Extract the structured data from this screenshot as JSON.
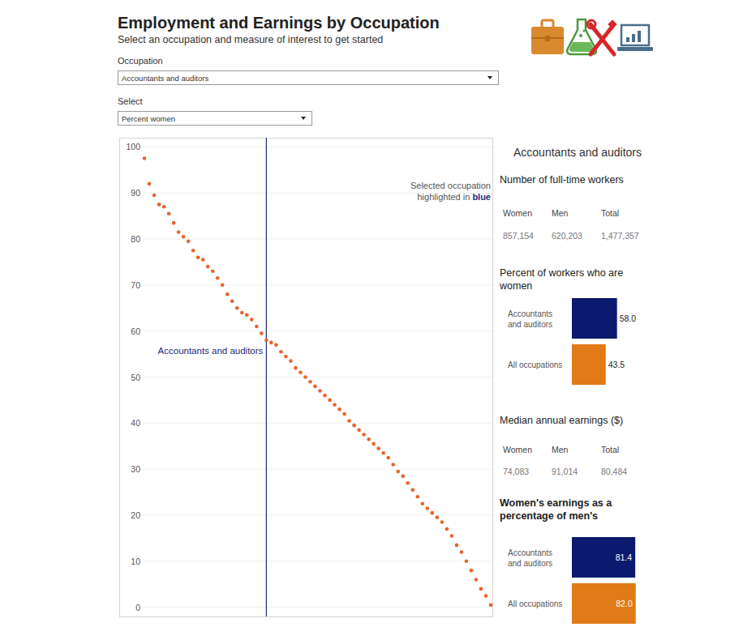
{
  "header": {
    "title": "Employment and Earnings by Occupation",
    "subtitle": "Select an occupation and measure of interest to get started"
  },
  "controls": [
    {
      "label": "Occupation",
      "value": "Accountants and auditors"
    },
    {
      "label": "Select",
      "value": "Percent women"
    }
  ],
  "chart_data": [
    {
      "type": "scatter",
      "categories": [
        null,
        null,
        null,
        null,
        null,
        null,
        null,
        null,
        null,
        null,
        null,
        null,
        null,
        null,
        null,
        null,
        null,
        null,
        null,
        null,
        null,
        null,
        null,
        null,
        null,
        "Accountants and auditors",
        null,
        null,
        null,
        null,
        null,
        null,
        null,
        null,
        null,
        null,
        null,
        null,
        null,
        null,
        null,
        null,
        null,
        null,
        null,
        null,
        null,
        null,
        null,
        null,
        null,
        null,
        null,
        null,
        null,
        null,
        null,
        null,
        null,
        null,
        null,
        null,
        null,
        null,
        null,
        null,
        null,
        null,
        null,
        null,
        null,
        null
      ],
      "values": [
        97.5,
        92,
        89.5,
        87.5,
        87,
        85.5,
        83.5,
        81.5,
        80.5,
        79.5,
        77.5,
        76,
        75.5,
        74,
        73,
        71.5,
        70,
        68,
        66.5,
        65,
        64,
        63.5,
        62.5,
        61,
        59.5,
        58.0,
        57.5,
        57,
        55.5,
        54.5,
        53.5,
        52,
        51,
        50,
        49,
        48,
        47,
        46,
        45,
        44,
        43,
        42,
        40.5,
        39.5,
        38.5,
        37.5,
        36.5,
        35.5,
        34.5,
        33.5,
        32.5,
        31,
        29.5,
        28.5,
        27,
        25.5,
        24,
        22.5,
        21.5,
        20.5,
        19.5,
        18.5,
        17,
        15.5,
        13.5,
        12,
        10,
        8,
        6,
        4,
        2.5,
        0.5
      ],
      "color": "#e8632b",
      "ylim": [
        -2,
        102
      ],
      "yticks": [
        0,
        10,
        20,
        30,
        40,
        50,
        60,
        70,
        80,
        90,
        100
      ],
      "grid": true,
      "tick_labels": "y",
      "annotations": [
        {
          "text": "Selected occupation highlighted in",
          "emphasis": "blue"
        }
      ]
    },
    {
      "type": "bar",
      "orientation": "horizontal",
      "title": "Percent of workers who are women",
      "categories": [
        "Accountants and auditors",
        "All occupations"
      ],
      "values": [
        58.0,
        43.5
      ],
      "value_labels": [
        "58.0",
        "43.5"
      ],
      "colors": [
        "#0b1a6e",
        "#e07b17"
      ],
      "xlim": [
        0,
        100
      ],
      "data_labels": true,
      "tick_labels": false
    },
    {
      "type": "bar",
      "orientation": "horizontal",
      "title": "Women's earnings as a percentage of men's",
      "categories": [
        "Accountants and auditors",
        "All occupations"
      ],
      "values": [
        81.4,
        82.0
      ],
      "value_labels": [
        "81.4",
        "82.0"
      ],
      "colors": [
        "#0b1a6e",
        "#e07b17"
      ],
      "xlim": [
        0,
        100
      ],
      "data_labels": true,
      "tick_labels": false
    }
  ],
  "panel": {
    "title": "Accountants and auditors",
    "tables": [
      {
        "title": "Number of full-time workers",
        "headers": [
          "Women",
          "Men",
          "Total"
        ],
        "values": [
          "857,154",
          "620,203",
          "1,477,357"
        ]
      },
      {
        "title": "Median annual earnings ($)",
        "headers": [
          "Women",
          "Men",
          "Total"
        ],
        "values": [
          "74,083",
          "91,014",
          "80,484"
        ]
      }
    ]
  }
}
